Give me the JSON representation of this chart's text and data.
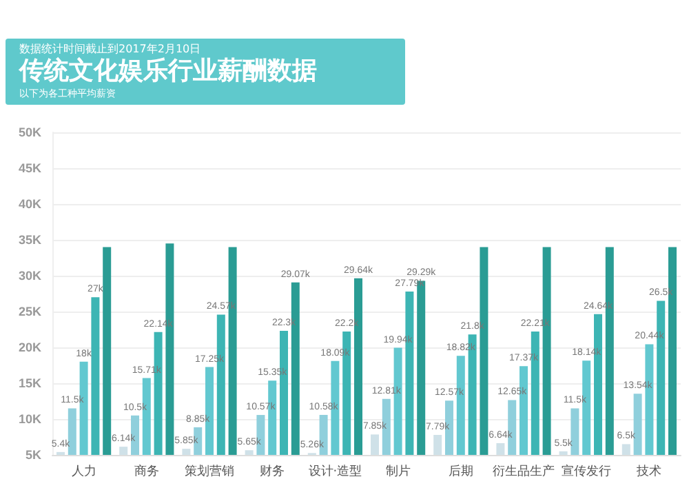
{
  "chart_data": {
    "type": "bar",
    "title": "传统文化娱乐行业薪酬数据",
    "subtitle": "数据统计时间截止到2017年2月10日",
    "annotations": [
      "以下为各工种平均薪资"
    ],
    "categories": [
      "人力",
      "商务",
      "策划营销",
      "财务",
      "设计·造型",
      "制片",
      "后期",
      "衍生品生产",
      "宣传发行",
      "技术"
    ],
    "series": [
      {
        "color": "#cfe1e8",
        "values": [
          5.4,
          6.14,
          5.85,
          5.65,
          5.26,
          7.85,
          7.79,
          6.64,
          5.5,
          6.5
        ],
        "value_labels": [
          "5.4k",
          "6.14k",
          "5.85k",
          "5.65k",
          "5.26k",
          "7.85k",
          "7.79k",
          "6.64k",
          "5.5k",
          "6.5k"
        ]
      },
      {
        "color": "#8fcfdc",
        "values": [
          11.5,
          10.5,
          8.85,
          10.57,
          10.58,
          12.81,
          12.57,
          12.65,
          11.5,
          13.54
        ],
        "value_labels": [
          "11.5k",
          "10.5k",
          "8.85k",
          "10.57k",
          "10.58k",
          "12.81k",
          "12.57k",
          "12.65k",
          "11.5k",
          "13.54k"
        ]
      },
      {
        "color": "#62c8d0",
        "values": [
          18,
          15.71,
          17.25,
          15.35,
          18.09,
          19.94,
          18.82,
          17.37,
          18.14,
          20.44
        ],
        "value_labels": [
          "18k",
          "15.71k",
          "17.25k",
          "15.35k",
          "18.09k",
          "19.94k",
          "18.82k",
          "17.37k",
          "18.14k",
          "20.44k"
        ]
      },
      {
        "color": "#3db5b4",
        "values": [
          27,
          22.14,
          24.57,
          22.3,
          22.2,
          27.79,
          21.8,
          22.21,
          24.64,
          26.5
        ],
        "value_labels": [
          "27k",
          "22.14k",
          "24.57k",
          "22.3k",
          "22.2k",
          "27.79k",
          "21.8k",
          "22.21k",
          "24.64k",
          "26.5k"
        ]
      },
      {
        "color": "#2a9c94",
        "values": [
          34,
          34.5,
          34,
          29.07,
          29.64,
          29.29,
          34,
          34,
          34,
          34
        ],
        "value_labels": [
          null,
          null,
          null,
          "29.07k",
          "29.64k",
          "29.29k",
          null,
          null,
          null,
          null
        ]
      }
    ],
    "ylim": [
      5,
      50
    ],
    "yticks": [
      {
        "value": 5,
        "label": "5K"
      },
      {
        "value": 10,
        "label": "10K"
      },
      {
        "value": 15,
        "label": "15K"
      },
      {
        "value": 20,
        "label": "20K"
      },
      {
        "value": 25,
        "label": "25K"
      },
      {
        "value": 30,
        "label": "30K"
      },
      {
        "value": 35,
        "label": "35K"
      },
      {
        "value": 40,
        "label": "40K"
      },
      {
        "value": 45,
        "label": "45K"
      },
      {
        "value": 50,
        "label": "50K"
      }
    ],
    "grid": "y"
  }
}
